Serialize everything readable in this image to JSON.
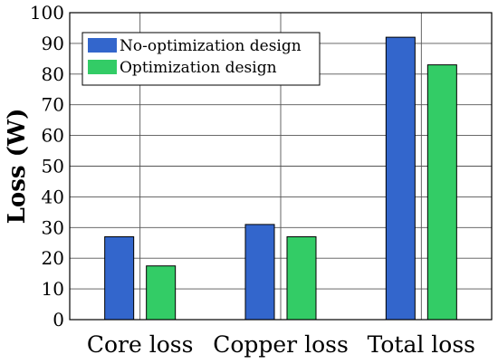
{
  "chart_data": {
    "type": "bar",
    "title": "",
    "xlabel": "",
    "ylabel": "Loss (W)",
    "ylim": [
      0,
      100
    ],
    "yticks": [
      0,
      10,
      20,
      30,
      40,
      50,
      60,
      70,
      80,
      90,
      100
    ],
    "categories": [
      "Core loss",
      "Copper loss",
      "Total loss"
    ],
    "series": [
      {
        "name": "No-optimization design",
        "color": "#3366cc",
        "values": [
          27,
          31,
          92
        ]
      },
      {
        "name": "Optimization design",
        "color": "#33cc66",
        "values": [
          17.5,
          27,
          83
        ]
      }
    ],
    "grid": true,
    "legend_position": "top-left"
  }
}
